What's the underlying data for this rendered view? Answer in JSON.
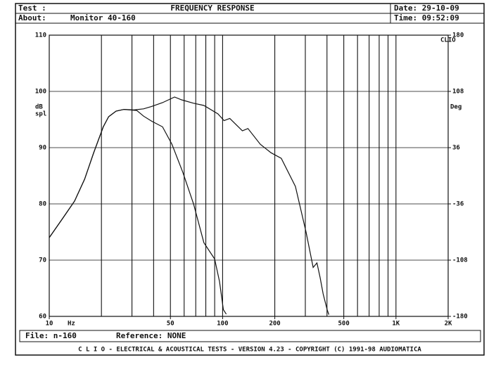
{
  "header": {
    "test_label": "Test :",
    "about_label": "About:",
    "about": "Monitor 40-160",
    "date": "Date: 29-10-09",
    "time": "Time: 09:52:09"
  },
  "footer": {
    "file": "File: n-160",
    "reference": "Reference: NONE",
    "banner": "C L I O  -  ELECTRICAL & ACOUSTICAL TESTS  -  VERSION 4.23  -  COPYRIGHT (C) 1991-98 AUDIOMATICA"
  },
  "chart_data": {
    "type": "line",
    "title": "FREQUENCY RESPONSE",
    "logo": "CLIO",
    "xscale": "log",
    "xlim": [
      10,
      2000
    ],
    "xticks": [
      10,
      50,
      100,
      200,
      500,
      {
        "value": 1000,
        "label": "1K"
      },
      {
        "value": 2000,
        "label": "2K"
      }
    ],
    "xgrid": [
      20,
      30,
      40,
      50,
      60,
      70,
      80,
      90,
      100,
      200,
      300,
      400,
      500,
      600,
      700,
      800,
      900,
      1000
    ],
    "xlabel": "Hz",
    "ylim": [
      60,
      110
    ],
    "yticks": [
      60,
      70,
      80,
      90,
      100,
      110
    ],
    "ylabel": [
      "dB",
      "spl"
    ],
    "y2lim": [
      -180,
      180
    ],
    "y2ticks": [
      -180,
      -108,
      -36,
      36,
      108,
      180
    ],
    "y2label": "Deg",
    "grid": true,
    "series": [
      {
        "color": "#111111",
        "x": [
          10,
          12,
          14,
          16,
          18,
          20.5,
          22,
          24.3,
          27,
          30.7,
          35,
          38.8,
          45,
          52.8,
          58,
          67.9,
          78,
          94,
          102,
          110,
          130,
          140,
          165,
          190,
          218,
          263,
          303,
          333,
          350,
          365,
          380,
          401,
          410
        ],
        "values": [
          74,
          77.5,
          80.5,
          84.4,
          89,
          93.7,
          95.5,
          96.5,
          96.8,
          96.7,
          96.9,
          97.3,
          98,
          99,
          98.5,
          97.9,
          97.5,
          96,
          94.8,
          95.2,
          93,
          93.4,
          90.6,
          89.1,
          88.1,
          83.1,
          75,
          68.7,
          69.5,
          66.9,
          64,
          61.2,
          60.3
        ]
      },
      {
        "color": "#111111",
        "x": [
          10,
          12,
          14,
          16,
          18,
          20.5,
          22,
          24.3,
          27,
          32,
          35,
          39,
          45,
          51,
          59,
          68,
          78,
          90,
          96,
          101,
          105
        ],
        "values": [
          74,
          77.5,
          80.5,
          84.4,
          89,
          93.7,
          95.5,
          96.5,
          96.8,
          96.6,
          95.6,
          94.7,
          93.7,
          90.6,
          85.6,
          80,
          73.1,
          70.2,
          66.2,
          61.2,
          60.4
        ]
      }
    ]
  }
}
